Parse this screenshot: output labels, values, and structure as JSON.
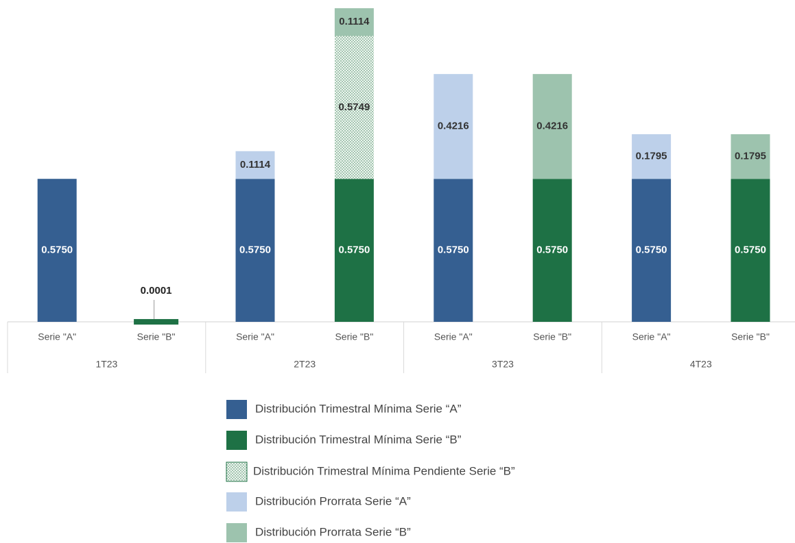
{
  "chart_data": {
    "type": "stacked_bar",
    "categories": [
      "Serie \"A\"",
      "Serie \"B\"",
      "Serie \"A\"",
      "Serie \"B\"",
      "Serie \"A\"",
      "Serie \"B\"",
      "Serie \"A\"",
      "Serie \"B\""
    ],
    "groups": [
      "1T23",
      "2T23",
      "3T23",
      "4T23"
    ],
    "series": [
      {
        "name": "Distribución Trimestral Mínima Serie “A”",
        "color": "#355f91",
        "values": [
          0.575,
          null,
          0.575,
          null,
          0.575,
          null,
          0.575,
          null
        ],
        "value_labels": [
          "0.5750",
          null,
          "0.5750",
          null,
          "0.5750",
          null,
          "0.5750",
          null
        ]
      },
      {
        "name": "Distribución Trimestral Mínima Serie “B”",
        "color": "#1e7145",
        "values": [
          null,
          0.0001,
          null,
          0.575,
          null,
          0.575,
          null,
          0.575
        ],
        "value_labels": [
          null,
          "0.0001",
          null,
          "0.5750",
          null,
          "0.5750",
          null,
          "0.5750"
        ]
      },
      {
        "name": "Distribución Trimestral Mínima Pendiente Serie “B”",
        "color": "#1e7145",
        "hatch": true,
        "values": [
          null,
          null,
          null,
          0.5749,
          null,
          null,
          null,
          null
        ]
      },
      {
        "name": "Distribución Prorrata Serie “A”",
        "color": "#bdd0ea",
        "values": [
          null,
          null,
          0.1114,
          null,
          0.4216,
          null,
          0.1795,
          null
        ]
      },
      {
        "name": "Distribución Prorrata Serie “B”",
        "color": "#9dc3ae",
        "values": [
          null,
          null,
          null,
          0.1114,
          null,
          0.4216,
          null,
          0.1795
        ]
      }
    ]
  }
}
